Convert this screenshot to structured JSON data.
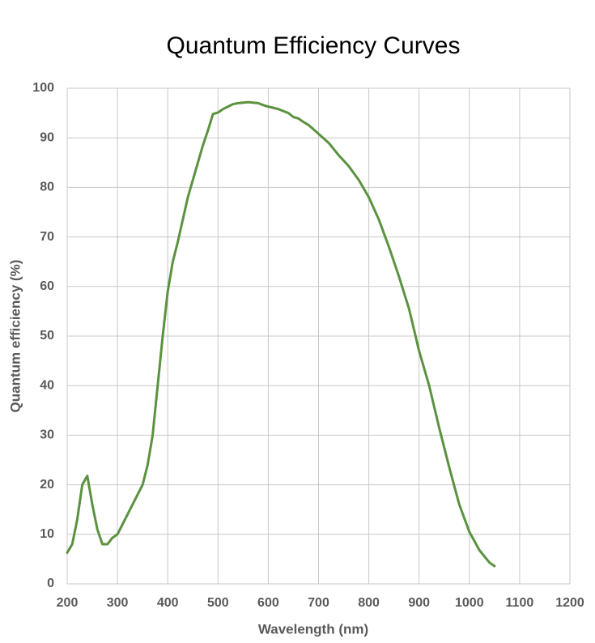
{
  "chart_data": {
    "type": "line",
    "title": "Quantum Efficiency Curves",
    "x_label": "Wavelength (nm)",
    "y_label": "Quantum efficiency (%)",
    "x": [
      200,
      210,
      220,
      230,
      240,
      250,
      260,
      270,
      280,
      290,
      300,
      320,
      340,
      350,
      360,
      370,
      380,
      390,
      400,
      410,
      420,
      430,
      440,
      450,
      460,
      470,
      480,
      490,
      500,
      510,
      520,
      530,
      540,
      550,
      560,
      570,
      580,
      590,
      600,
      620,
      640,
      650,
      660,
      670,
      680,
      690,
      700,
      720,
      740,
      760,
      780,
      800,
      820,
      840,
      860,
      880,
      900,
      920,
      940,
      960,
      980,
      1000,
      1020,
      1040,
      1050
    ],
    "series": [
      {
        "name": "Quantum efficiency",
        "color": "#5b9240",
        "values": [
          6.3,
          8,
          13,
          20,
          21.8,
          16,
          11,
          8,
          8,
          9.3,
          10,
          14,
          18,
          20,
          24,
          30,
          40,
          50,
          59,
          65,
          69,
          73.5,
          78,
          81.5,
          85,
          88.5,
          91.5,
          94.8,
          95.1,
          95.8,
          96.3,
          96.8,
          97,
          97.1,
          97.2,
          97.1,
          97,
          96.6,
          96.3,
          95.8,
          95,
          94.2,
          93.9,
          93.2,
          92.6,
          91.7,
          90.8,
          89,
          86.5,
          84.3,
          81.5,
          78,
          73.5,
          68,
          62,
          55.5,
          47,
          40,
          31.5,
          23.5,
          16,
          10.5,
          6.8,
          4.3,
          3.6
        ]
      }
    ],
    "xlim": [
      200,
      1200
    ],
    "xticks": [
      200,
      300,
      400,
      500,
      600,
      700,
      800,
      900,
      1000,
      1100,
      1200
    ],
    "ylim": [
      0,
      100
    ],
    "yticks": [
      0,
      10,
      20,
      30,
      40,
      50,
      60,
      70,
      80,
      90,
      100
    ],
    "grid": true
  }
}
